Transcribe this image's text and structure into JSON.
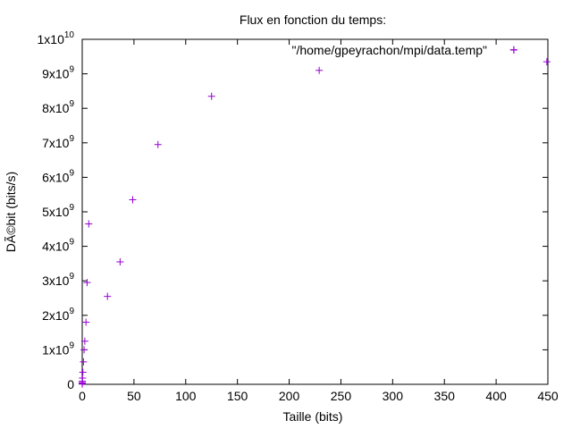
{
  "chart_data": {
    "type": "scatter",
    "title": "Flux en fonction du temps:",
    "xlabel": "Taille (bits)",
    "ylabel": "DÃ©bit (bits/s)",
    "xlim": [
      0,
      450
    ],
    "ylim": [
      0,
      10000000000
    ],
    "x_ticks": [
      0,
      50,
      100,
      150,
      200,
      250,
      300,
      350,
      400,
      450
    ],
    "x_tick_labels": [
      "0",
      "50",
      "100",
      "150",
      "200",
      "250",
      "300",
      "350",
      "400",
      "450"
    ],
    "y_ticks": [
      {
        "value": 0,
        "mantissa": "0",
        "exponent": ""
      },
      {
        "value": 1000000000,
        "mantissa": "1x10",
        "exponent": "9"
      },
      {
        "value": 2000000000,
        "mantissa": "2x10",
        "exponent": "9"
      },
      {
        "value": 3000000000,
        "mantissa": "3x10",
        "exponent": "9"
      },
      {
        "value": 4000000000,
        "mantissa": "4x10",
        "exponent": "9"
      },
      {
        "value": 5000000000,
        "mantissa": "5x10",
        "exponent": "9"
      },
      {
        "value": 6000000000,
        "mantissa": "6x10",
        "exponent": "9"
      },
      {
        "value": 7000000000,
        "mantissa": "7x10",
        "exponent": "9"
      },
      {
        "value": 8000000000,
        "mantissa": "8x10",
        "exponent": "9"
      },
      {
        "value": 9000000000,
        "mantissa": "9x10",
        "exponent": "9"
      },
      {
        "value": 10000000000,
        "mantissa": "1x10",
        "exponent": "10"
      }
    ],
    "grid": false,
    "legend_position": "top-right",
    "series": [
      {
        "name": "\"/home/gpeyrachon/mpi/data.temp\"",
        "color": "#9400d3",
        "marker": "plus",
        "points": [
          {
            "x": 0.01,
            "y": 8000000
          },
          {
            "x": 0.02,
            "y": 15000000
          },
          {
            "x": 0.04,
            "y": 30000000
          },
          {
            "x": 0.07,
            "y": 50000000
          },
          {
            "x": 0.15,
            "y": 90000000
          },
          {
            "x": 0.3,
            "y": 180000000
          },
          {
            "x": 0.6,
            "y": 350000000
          },
          {
            "x": 1.2,
            "y": 650000000
          },
          {
            "x": 1.8,
            "y": 1000000000
          },
          {
            "x": 2.5,
            "y": 1250000000
          },
          {
            "x": 3.6,
            "y": 1800000000
          },
          {
            "x": 4.7,
            "y": 2950000000
          },
          {
            "x": 6.3,
            "y": 4650000000
          },
          {
            "x": 24.4,
            "y": 2550000000
          },
          {
            "x": 36.6,
            "y": 3550000000
          },
          {
            "x": 48.8,
            "y": 5350000000
          },
          {
            "x": 73.2,
            "y": 6950000000
          },
          {
            "x": 125,
            "y": 8350000000
          },
          {
            "x": 229,
            "y": 9100000000
          },
          {
            "x": 417,
            "y": 9700000000
          },
          {
            "x": 449,
            "y": 9350000000
          }
        ]
      }
    ]
  }
}
